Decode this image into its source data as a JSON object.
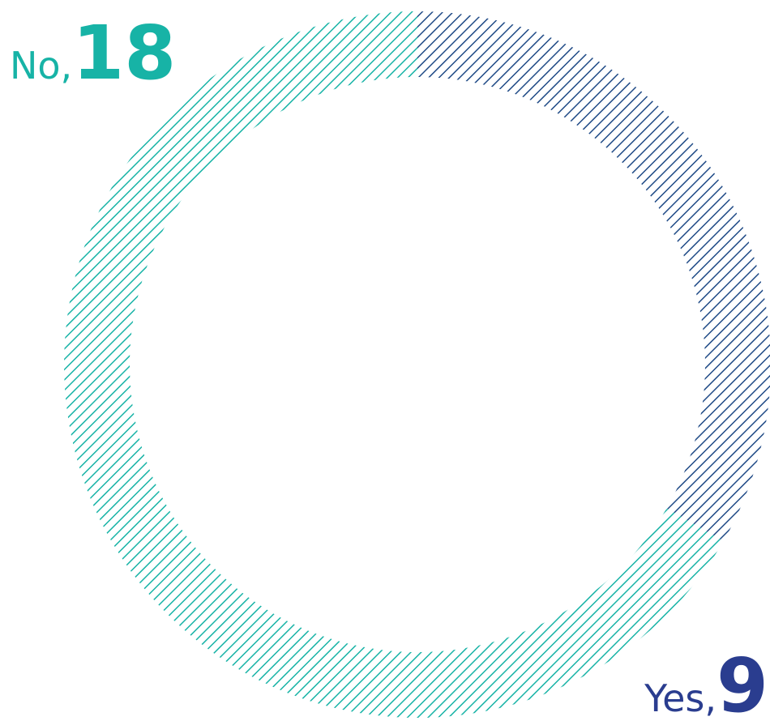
{
  "chart_data": {
    "type": "pie",
    "categories": [
      "No,",
      "Yes,"
    ],
    "values": [
      18,
      9
    ],
    "colors": [
      "#17b3a6",
      "#1f4a86"
    ],
    "label_colors": [
      "#17b3a6",
      "#2a3d8f"
    ]
  }
}
